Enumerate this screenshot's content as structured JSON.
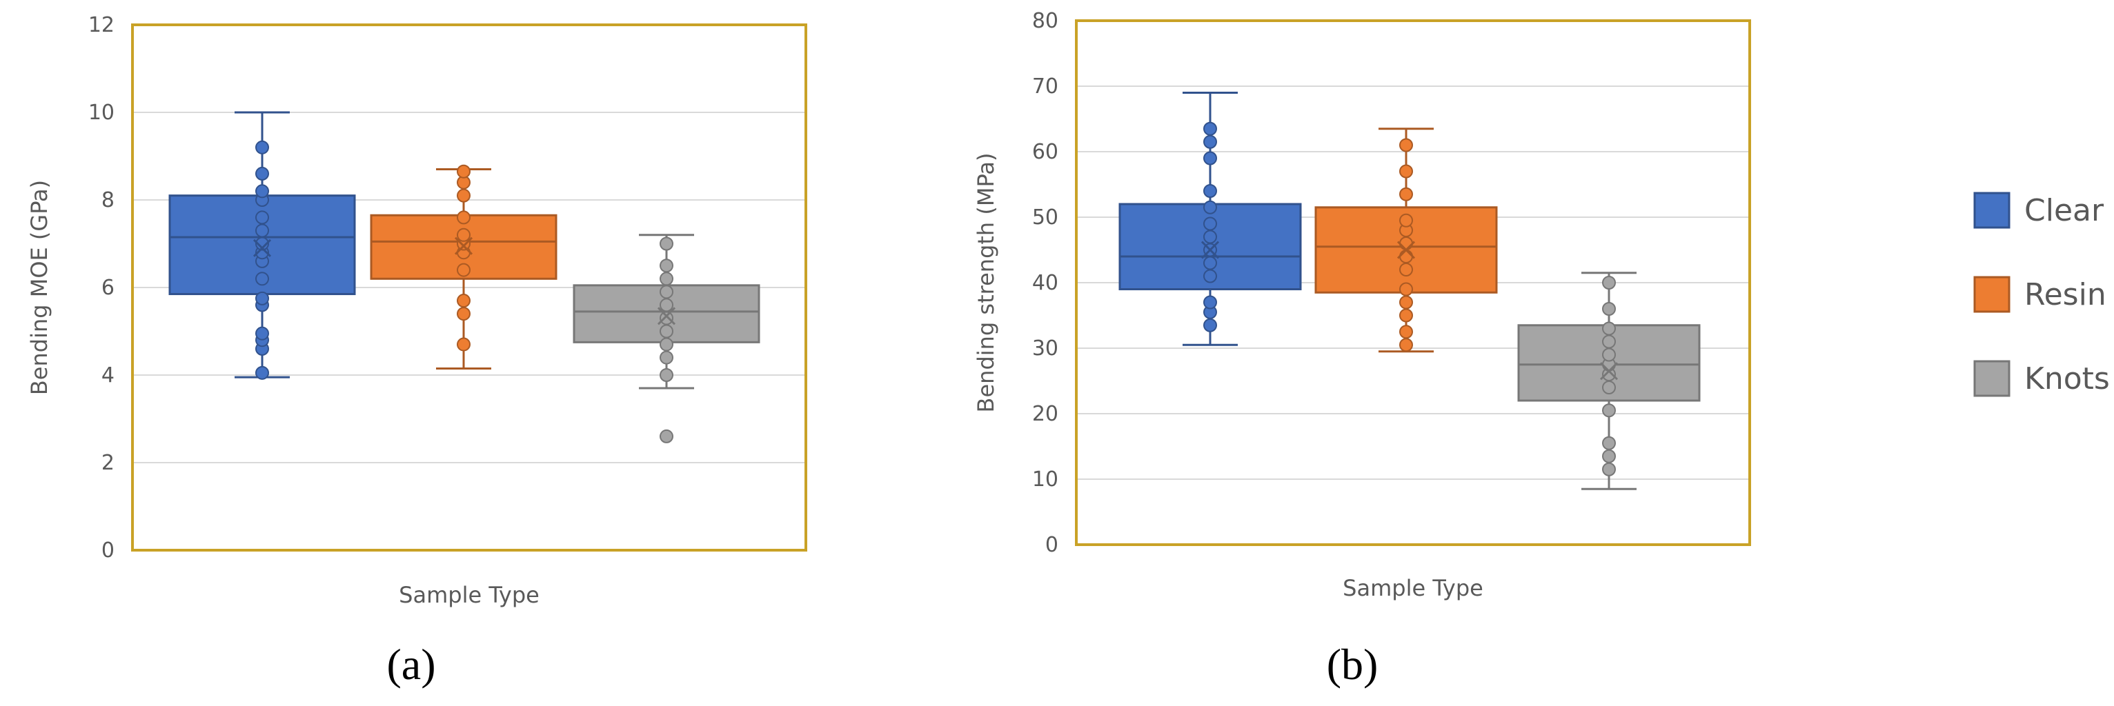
{
  "figure": {
    "legend": [
      {
        "name": "Clear",
        "color": "#4472c4"
      },
      {
        "name": "Resin",
        "color": "#ed7d31"
      },
      {
        "name": "Knots",
        "color": "#a5a5a5"
      }
    ],
    "frame_color": "#c9a227",
    "grid_color": "#d9d9d9"
  },
  "chart_data": [
    {
      "type": "box",
      "panel_label": "(a)",
      "title": "",
      "xlabel": "Sample Type",
      "ylabel": "Bending MOE (GPa)",
      "ylim": [
        0,
        12
      ],
      "yticks": [
        0,
        2,
        4,
        6,
        8,
        10,
        12
      ],
      "series": [
        {
          "name": "Clear",
          "whisker_low": 3.95,
          "q1": 5.85,
          "median": 7.15,
          "q3": 8.1,
          "whisker_high": 10.0,
          "mean": 6.9,
          "points": [
            4.05,
            4.6,
            4.8,
            4.95,
            5.6,
            5.75,
            6.2,
            6.6,
            6.8,
            7.0,
            7.3,
            7.6,
            8.0,
            8.2,
            8.6,
            9.2
          ]
        },
        {
          "name": "Resin",
          "whisker_low": 4.15,
          "q1": 6.2,
          "median": 7.05,
          "q3": 7.65,
          "whisker_high": 8.7,
          "mean": 6.95,
          "points": [
            4.7,
            5.4,
            5.7,
            6.4,
            6.8,
            7.0,
            7.2,
            7.6,
            8.1,
            8.4,
            8.65
          ]
        },
        {
          "name": "Knots",
          "whisker_low": 3.7,
          "q1": 4.75,
          "median": 5.45,
          "q3": 6.05,
          "whisker_high": 7.2,
          "mean": 5.35,
          "points": [
            2.6,
            4.0,
            4.4,
            4.7,
            5.0,
            5.3,
            5.6,
            5.9,
            6.2,
            6.5,
            7.0
          ]
        }
      ]
    },
    {
      "type": "box",
      "panel_label": "(b)",
      "title": "",
      "xlabel": "Sample Type",
      "ylabel": "Bending strength (MPa)",
      "ylim": [
        0,
        80
      ],
      "yticks": [
        0,
        10,
        20,
        30,
        40,
        50,
        60,
        70,
        80
      ],
      "series": [
        {
          "name": "Clear",
          "whisker_low": 30.5,
          "q1": 39,
          "median": 44,
          "q3": 52,
          "whisker_high": 69,
          "mean": 45,
          "points": [
            33.5,
            35.5,
            37,
            41,
            43,
            45,
            47,
            49,
            51.5,
            54,
            59,
            61.5,
            63.5
          ]
        },
        {
          "name": "Resin",
          "whisker_low": 29.5,
          "q1": 38.5,
          "median": 45.5,
          "q3": 51.5,
          "whisker_high": 63.5,
          "mean": 45,
          "points": [
            30.5,
            32.5,
            35,
            37,
            39,
            42,
            44,
            46,
            48,
            49.5,
            53.5,
            57,
            61
          ]
        },
        {
          "name": "Knots",
          "whisker_low": 8.5,
          "q1": 22,
          "median": 27.5,
          "q3": 33.5,
          "whisker_high": 41.5,
          "mean": 26.5,
          "points": [
            11.5,
            13.5,
            15.5,
            20.5,
            24,
            26,
            27.5,
            29,
            31,
            33,
            36,
            40
          ]
        }
      ]
    }
  ]
}
